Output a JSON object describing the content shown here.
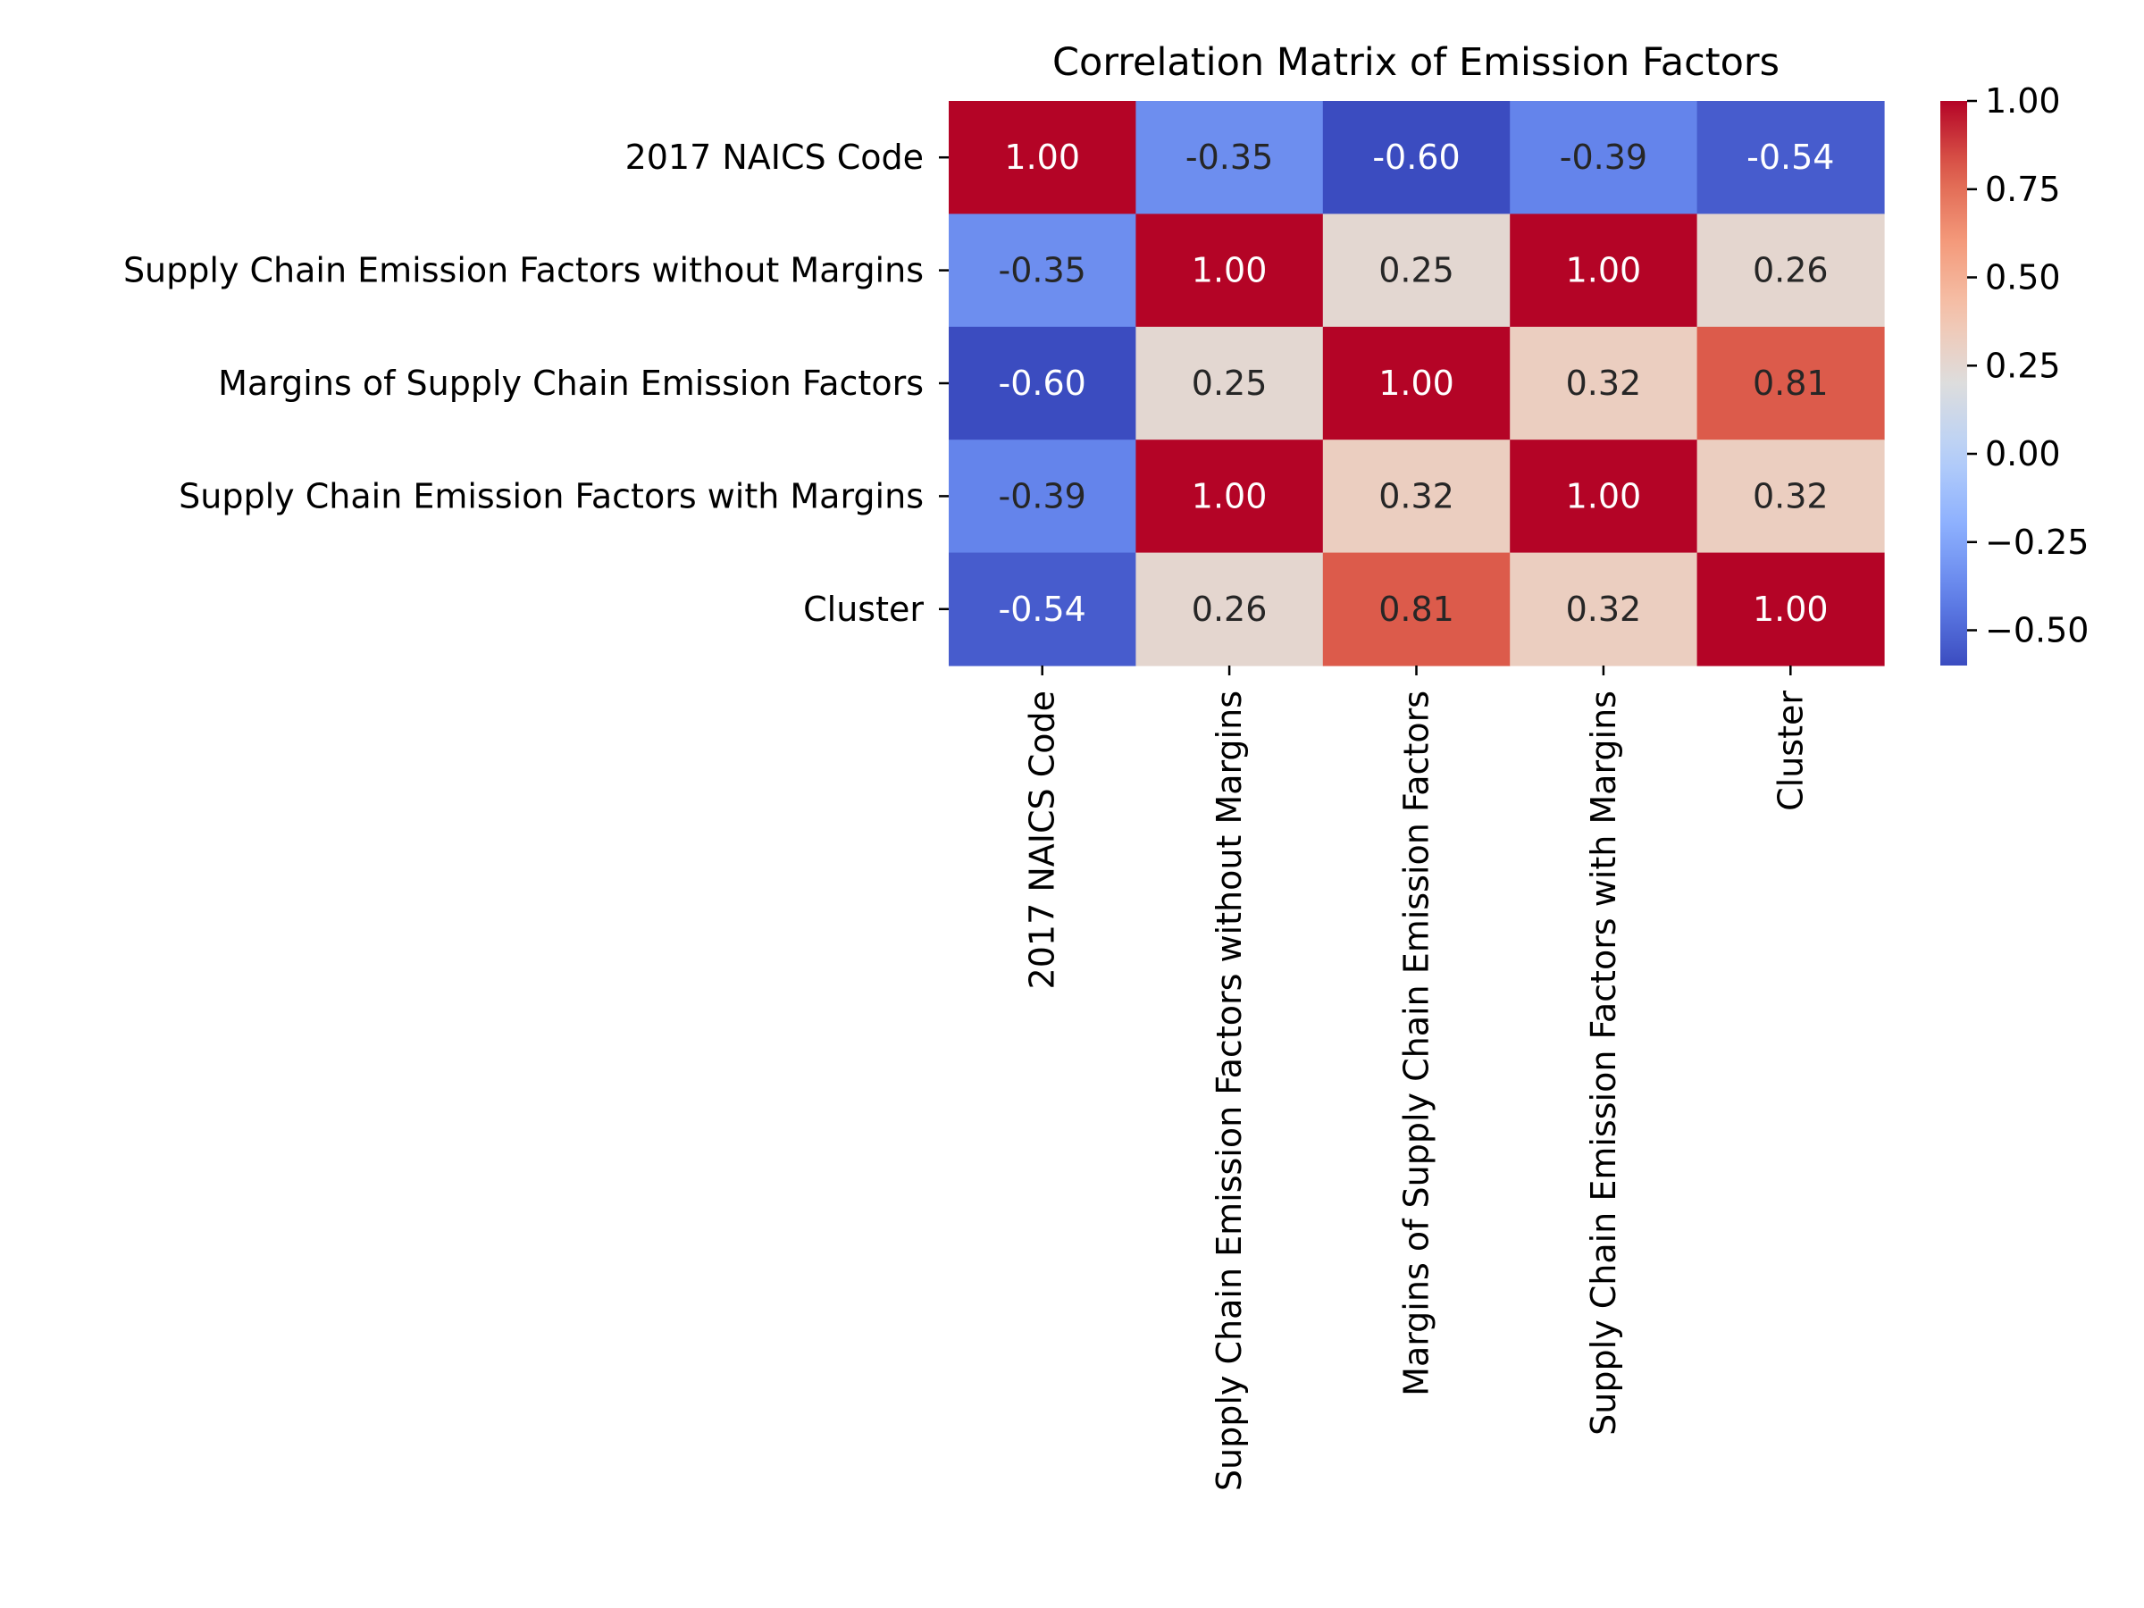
{
  "chart_data": {
    "type": "heatmap",
    "title": "Correlation Matrix of Emission Factors",
    "row_labels": [
      "2017 NAICS Code",
      "Supply Chain Emission Factors without Margins",
      "Margins of Supply Chain Emission Factors",
      "Supply Chain Emission Factors with Margins",
      "Cluster"
    ],
    "col_labels": [
      "2017 NAICS Code",
      "Supply Chain Emission Factors without Margins",
      "Margins of Supply Chain Emission Factors",
      "Supply Chain Emission Factors with Margins",
      "Cluster"
    ],
    "values": [
      [
        1.0,
        -0.35,
        -0.6,
        -0.39,
        -0.54
      ],
      [
        -0.35,
        1.0,
        0.25,
        1.0,
        0.26
      ],
      [
        -0.6,
        0.25,
        1.0,
        0.32,
        0.81
      ],
      [
        -0.39,
        1.0,
        0.32,
        1.0,
        0.32
      ],
      [
        -0.54,
        0.26,
        0.81,
        0.32,
        1.0
      ]
    ],
    "cell_labels": [
      [
        "1.00",
        "-0.35",
        "-0.60",
        "-0.39",
        "-0.54"
      ],
      [
        "-0.35",
        "1.00",
        "0.25",
        "1.00",
        "0.26"
      ],
      [
        "-0.60",
        "0.25",
        "1.00",
        "0.32",
        "0.81"
      ],
      [
        "-0.39",
        "1.00",
        "0.32",
        "1.00",
        "0.32"
      ],
      [
        "-0.54",
        "0.26",
        "0.81",
        "0.32",
        "1.00"
      ]
    ],
    "colormap": "coolwarm",
    "colorbar": {
      "range": [
        -0.6,
        1.0
      ],
      "ticks": [
        1.0,
        0.75,
        0.5,
        0.25,
        0.0,
        -0.25,
        -0.5
      ],
      "tick_labels": [
        "1.00",
        "0.75",
        "0.50",
        "0.25",
        "0.00",
        "−0.25",
        "−0.50"
      ]
    },
    "grid": false
  }
}
